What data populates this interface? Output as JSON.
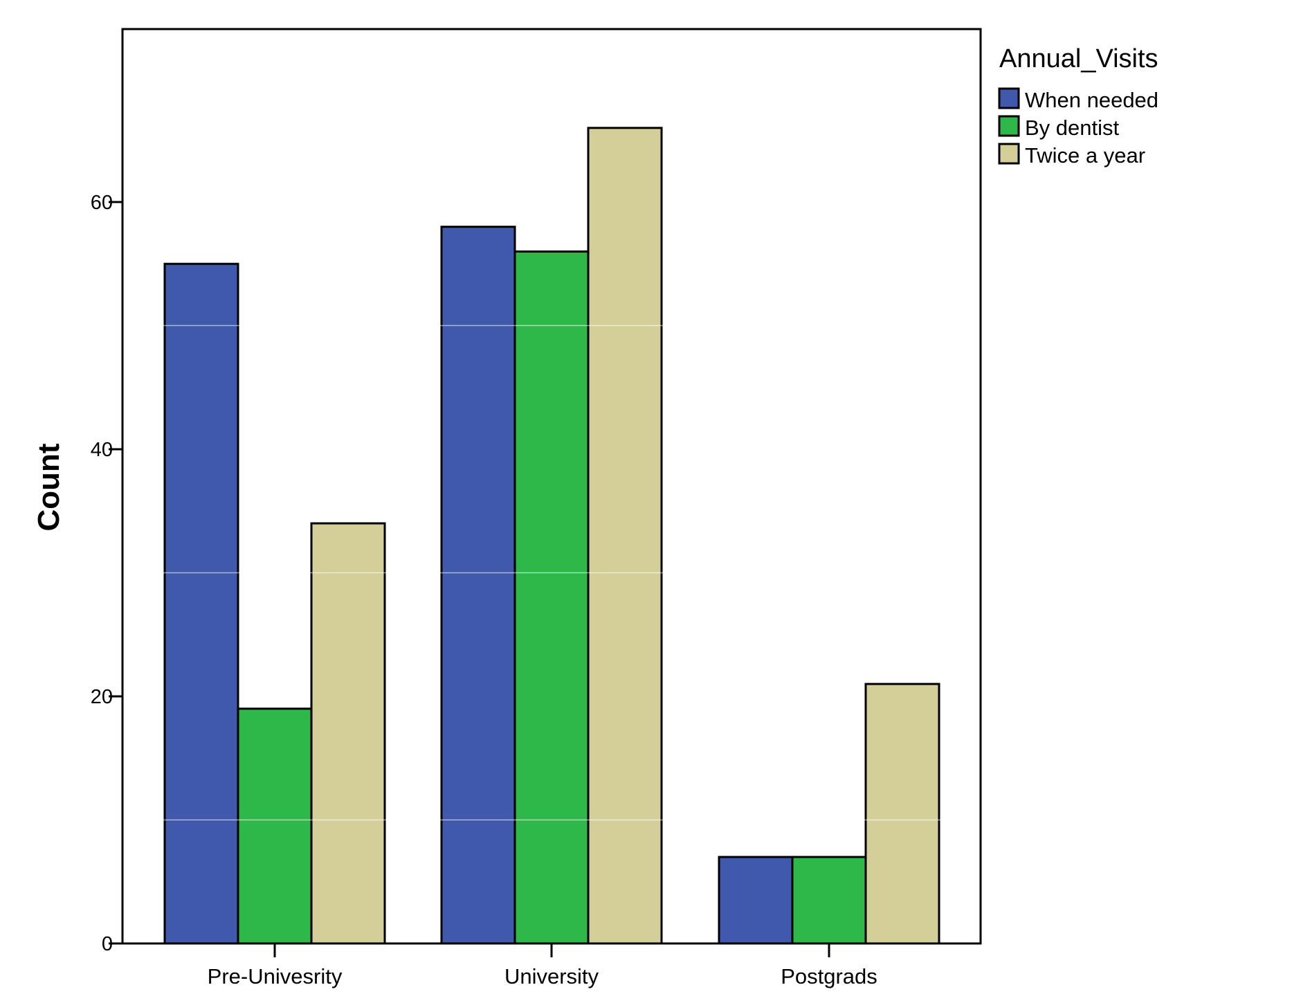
{
  "chart_data": {
    "type": "bar",
    "categories": [
      "Pre-Univesrity",
      "University",
      "Postgrads"
    ],
    "series": [
      {
        "name": "When needed",
        "values": [
          55,
          58,
          7
        ],
        "color": "#4059AD"
      },
      {
        "name": "By dentist",
        "values": [
          19,
          56,
          7
        ],
        "color": "#2FB84A"
      },
      {
        "name": "Twice a year",
        "values": [
          34,
          66,
          21
        ],
        "color": "#D4CF98"
      }
    ],
    "title": "",
    "xlabel": "",
    "ylabel": "Count",
    "ylim": [
      0,
      74
    ],
    "yticks": [
      0,
      20,
      40,
      60
    ],
    "grid": false,
    "legend": {
      "title": "Annual_Visits",
      "position": "right"
    }
  }
}
